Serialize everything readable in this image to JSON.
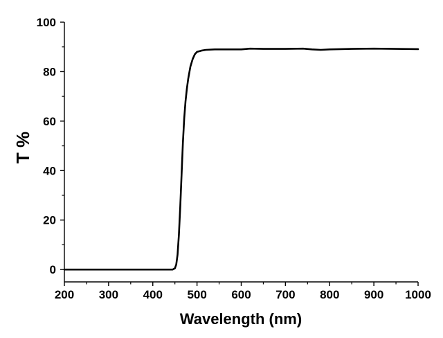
{
  "chart_data": {
    "type": "line",
    "xlabel": "Wavelength (nm)",
    "ylabel": "T %",
    "xlim": [
      200,
      1000
    ],
    "ylim": [
      -5,
      100
    ],
    "x_ticks": [
      200,
      300,
      400,
      500,
      600,
      700,
      800,
      900,
      1000
    ],
    "y_ticks": [
      0,
      20,
      40,
      60,
      80,
      100
    ],
    "grid": false,
    "series": [
      {
        "color": "#000000",
        "x": [
          200,
          300,
          400,
          445,
          450,
          453,
          456,
          459,
          462,
          465,
          468,
          471,
          474,
          477,
          480,
          485,
          490,
          495,
          500,
          510,
          520,
          540,
          560,
          580,
          600,
          620,
          650,
          700,
          740,
          760,
          780,
          800,
          850,
          900,
          950,
          1000
        ],
        "y": [
          0,
          0,
          0,
          0,
          0.5,
          2,
          6,
          14,
          25,
          38,
          51,
          61,
          68,
          73,
          77,
          82,
          85,
          87,
          88,
          88.5,
          88.8,
          89,
          89,
          89,
          89,
          89.3,
          89.2,
          89.2,
          89.3,
          89,
          88.8,
          89,
          89.2,
          89.3,
          89.2,
          89.1
        ]
      }
    ]
  }
}
